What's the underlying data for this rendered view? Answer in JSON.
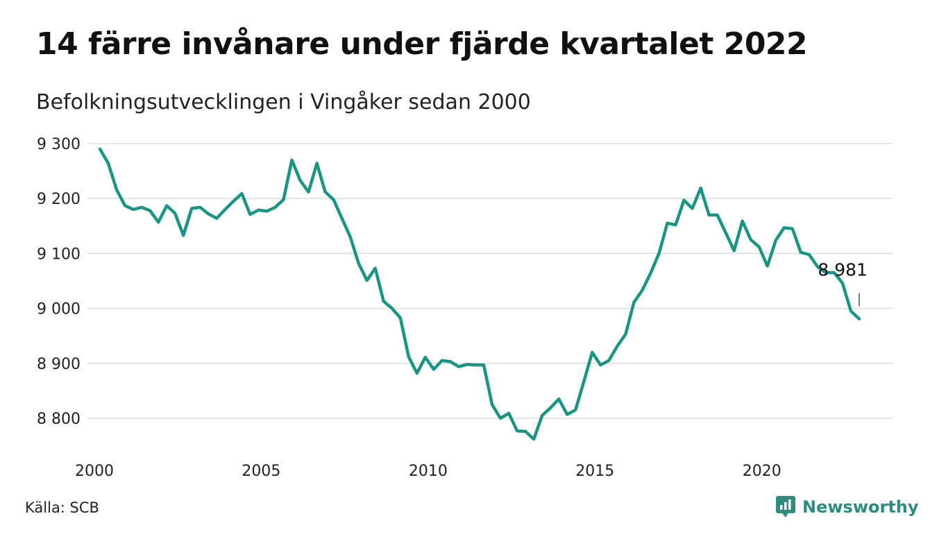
{
  "title": "14 färre invånare under fjärde kvartalet 2022",
  "subtitle": "Befolkningsutvecklingen i Vingåker sedan 2000",
  "source": "Källa: SCB",
  "brand": {
    "name": "Newsworthy",
    "icon": "newsworthy-logo-icon",
    "color": "#2e8b7e"
  },
  "chart_data": {
    "type": "line",
    "title": "14 färre invånare under fjärde kvartalet 2022",
    "subtitle": "Befolkningsutvecklingen i Vingåker sedan 2000",
    "xlabel": "",
    "ylabel": "",
    "line_color": "#1a9584",
    "grid": true,
    "xlim": [
      2000,
      2023
    ],
    "ylim": [
      8750,
      9300
    ],
    "y_ticks": [
      9300,
      9200,
      9100,
      9000,
      8900,
      8800
    ],
    "y_tick_labels": [
      "9 300",
      "9 200",
      "9 100",
      "9 000",
      "8 900",
      "8 800"
    ],
    "x_ticks": [
      2000,
      2005,
      2010,
      2015,
      2020
    ],
    "x_tick_labels": [
      "2000",
      "2005",
      "2010",
      "2015",
      "2020"
    ],
    "x": [
      2000.0,
      2000.25,
      2000.5,
      2000.75,
      2001.0,
      2001.25,
      2001.5,
      2001.75,
      2002.0,
      2002.25,
      2002.5,
      2002.75,
      2003.0,
      2003.25,
      2003.5,
      2003.75,
      2004.0,
      2004.25,
      2004.5,
      2004.75,
      2005.0,
      2005.25,
      2005.5,
      2005.75,
      2006.0,
      2006.25,
      2006.5,
      2006.75,
      2007.0,
      2007.25,
      2007.5,
      2007.75,
      2008.0,
      2008.25,
      2008.5,
      2008.75,
      2009.0,
      2009.25,
      2009.5,
      2009.75,
      2010.0,
      2010.25,
      2010.5,
      2010.75,
      2011.0,
      2011.25,
      2011.5,
      2011.75,
      2012.0,
      2012.25,
      2012.5,
      2012.75,
      2013.0,
      2013.25,
      2013.5,
      2013.75,
      2014.0,
      2014.25,
      2014.5,
      2014.75,
      2015.0,
      2015.25,
      2015.5,
      2015.75,
      2016.0,
      2016.25,
      2016.5,
      2016.75,
      2017.0,
      2017.25,
      2017.5,
      2017.75,
      2018.0,
      2018.25,
      2018.5,
      2018.75,
      2019.0,
      2019.25,
      2019.5,
      2019.75,
      2020.0,
      2020.25,
      2020.5,
      2020.75,
      2021.0,
      2021.25,
      2021.5,
      2021.75,
      2022.0,
      2022.25,
      2022.5,
      2022.75
    ],
    "series": [
      {
        "values": [
          9290,
          9264,
          9216,
          9187,
          9180,
          9184,
          9178,
          9157,
          9187,
          9173,
          9133,
          9182,
          9184,
          9172,
          9164,
          9180,
          9195,
          9209,
          9171,
          9179,
          9177,
          9184,
          9198,
          9270,
          9233,
          9212,
          9264,
          9212,
          9198,
          9164,
          9130,
          9082,
          9051,
          9073,
          9013,
          9000,
          8983,
          8912,
          8882,
          8911,
          8889,
          8905,
          8903,
          8894,
          8898,
          8897,
          8897,
          8825,
          8800,
          8809,
          8777,
          8776,
          8762,
          8805,
          8819,
          8835,
          8807,
          8815,
          8867,
          8920,
          8897,
          8905,
          8931,
          8953,
          9011,
          9033,
          9064,
          9100,
          9155,
          9152,
          9197,
          9182,
          9219,
          9170,
          9170,
          9138,
          9105,
          9159,
          9125,
          9112,
          9077,
          9124,
          9147,
          9145,
          9102,
          9098,
          9076,
          9065,
          9065,
          9046,
          8995,
          8981
        ]
      }
    ],
    "annotations": [
      {
        "x": 2022.75,
        "y": 8981,
        "text": "8 981"
      }
    ]
  }
}
